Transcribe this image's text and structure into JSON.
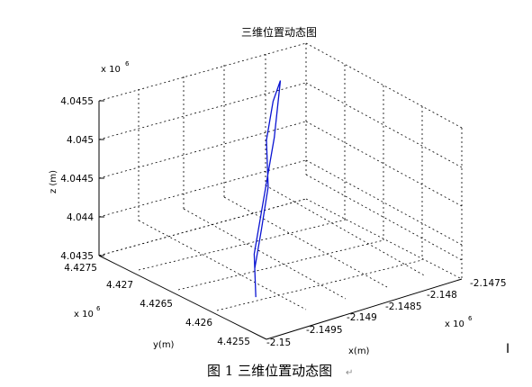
{
  "chart_data": {
    "type": "line",
    "title": "三维位置动态图",
    "xlabel": "x(m)",
    "ylabel": "y(m)",
    "zlabel": "z (m)",
    "x_scale_label": {
      "base": "x 10",
      "exp": "6"
    },
    "y_scale_label": {
      "base": "x 10",
      "exp": "6"
    },
    "z_scale_label": {
      "base": "x 10",
      "exp": "6"
    },
    "x_ticks": [
      "-2.15",
      "-2.1495",
      "-2.149",
      "-2.1485",
      "-2.148",
      "-2.1475"
    ],
    "y_ticks": [
      "4.4255",
      "4.426",
      "4.4265",
      "4.427",
      "4.4275"
    ],
    "z_ticks": [
      "4.0435",
      "4.044",
      "4.0445",
      "4.045",
      "4.0455"
    ],
    "xlim": [
      -2.15,
      -2.1475
    ],
    "ylim": [
      4.4255,
      4.4275
    ],
    "zlim": [
      4.0435,
      4.0455
    ],
    "units_multiplier": 1000000,
    "grid": true,
    "series": [
      {
        "color": "#0a14d2",
        "x": [
          -2.1496,
          -2.1493,
          -2.149,
          -2.1487,
          -2.1484,
          -2.148,
          -2.1482,
          -2.1485,
          -2.1488,
          -2.1491,
          -2.1494,
          -2.1496
        ],
        "y": [
          4.426,
          4.4263,
          4.4265,
          4.4267,
          4.4269,
          4.4272,
          4.4271,
          4.4269,
          4.4266,
          4.4264,
          4.4262,
          4.426
        ],
        "z": [
          4.04365,
          4.04395,
          4.04425,
          4.04455,
          4.04485,
          4.0453,
          4.04515,
          4.04485,
          4.0445,
          4.04415,
          4.04385,
          4.04365
        ]
      }
    ]
  },
  "caption": "图 1  三维位置动态图",
  "caption_mark": "↵",
  "cursor_mark": "I"
}
